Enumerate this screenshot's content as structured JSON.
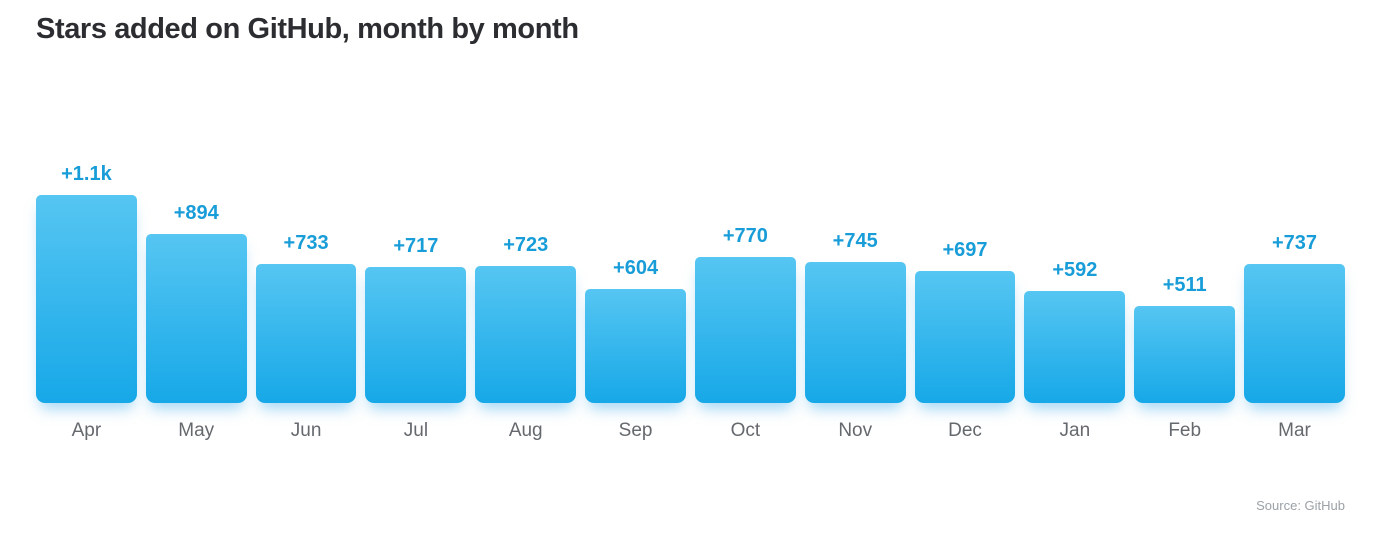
{
  "title": "Stars added on GitHub, month by month",
  "source_note": "Source: GitHub",
  "colors": {
    "bar_gradient_top": "#56c6f2",
    "bar_gradient_bottom": "#17a8e8",
    "value_label": "#189dd8",
    "month_label": "#65696e",
    "title_text": "#2b2d31",
    "source_text": "#9ba1a6"
  },
  "chart_data": {
    "type": "bar",
    "title": "Stars added on GitHub, month by month",
    "categories": [
      "Apr",
      "May",
      "Jun",
      "Jul",
      "Aug",
      "Sep",
      "Oct",
      "Nov",
      "Dec",
      "Jan",
      "Feb",
      "Mar"
    ],
    "values": [
      1100,
      894,
      733,
      717,
      723,
      604,
      770,
      745,
      697,
      592,
      511,
      737
    ],
    "value_labels": [
      "+1.1k",
      "+894",
      "+733",
      "+717",
      "+723",
      "+604",
      "+770",
      "+745",
      "+697",
      "+592",
      "+511",
      "+737"
    ],
    "xlabel": "",
    "ylabel": "",
    "ylim": [
      0,
      1100
    ],
    "grid": false,
    "legend": false,
    "source": "Source: GitHub"
  }
}
